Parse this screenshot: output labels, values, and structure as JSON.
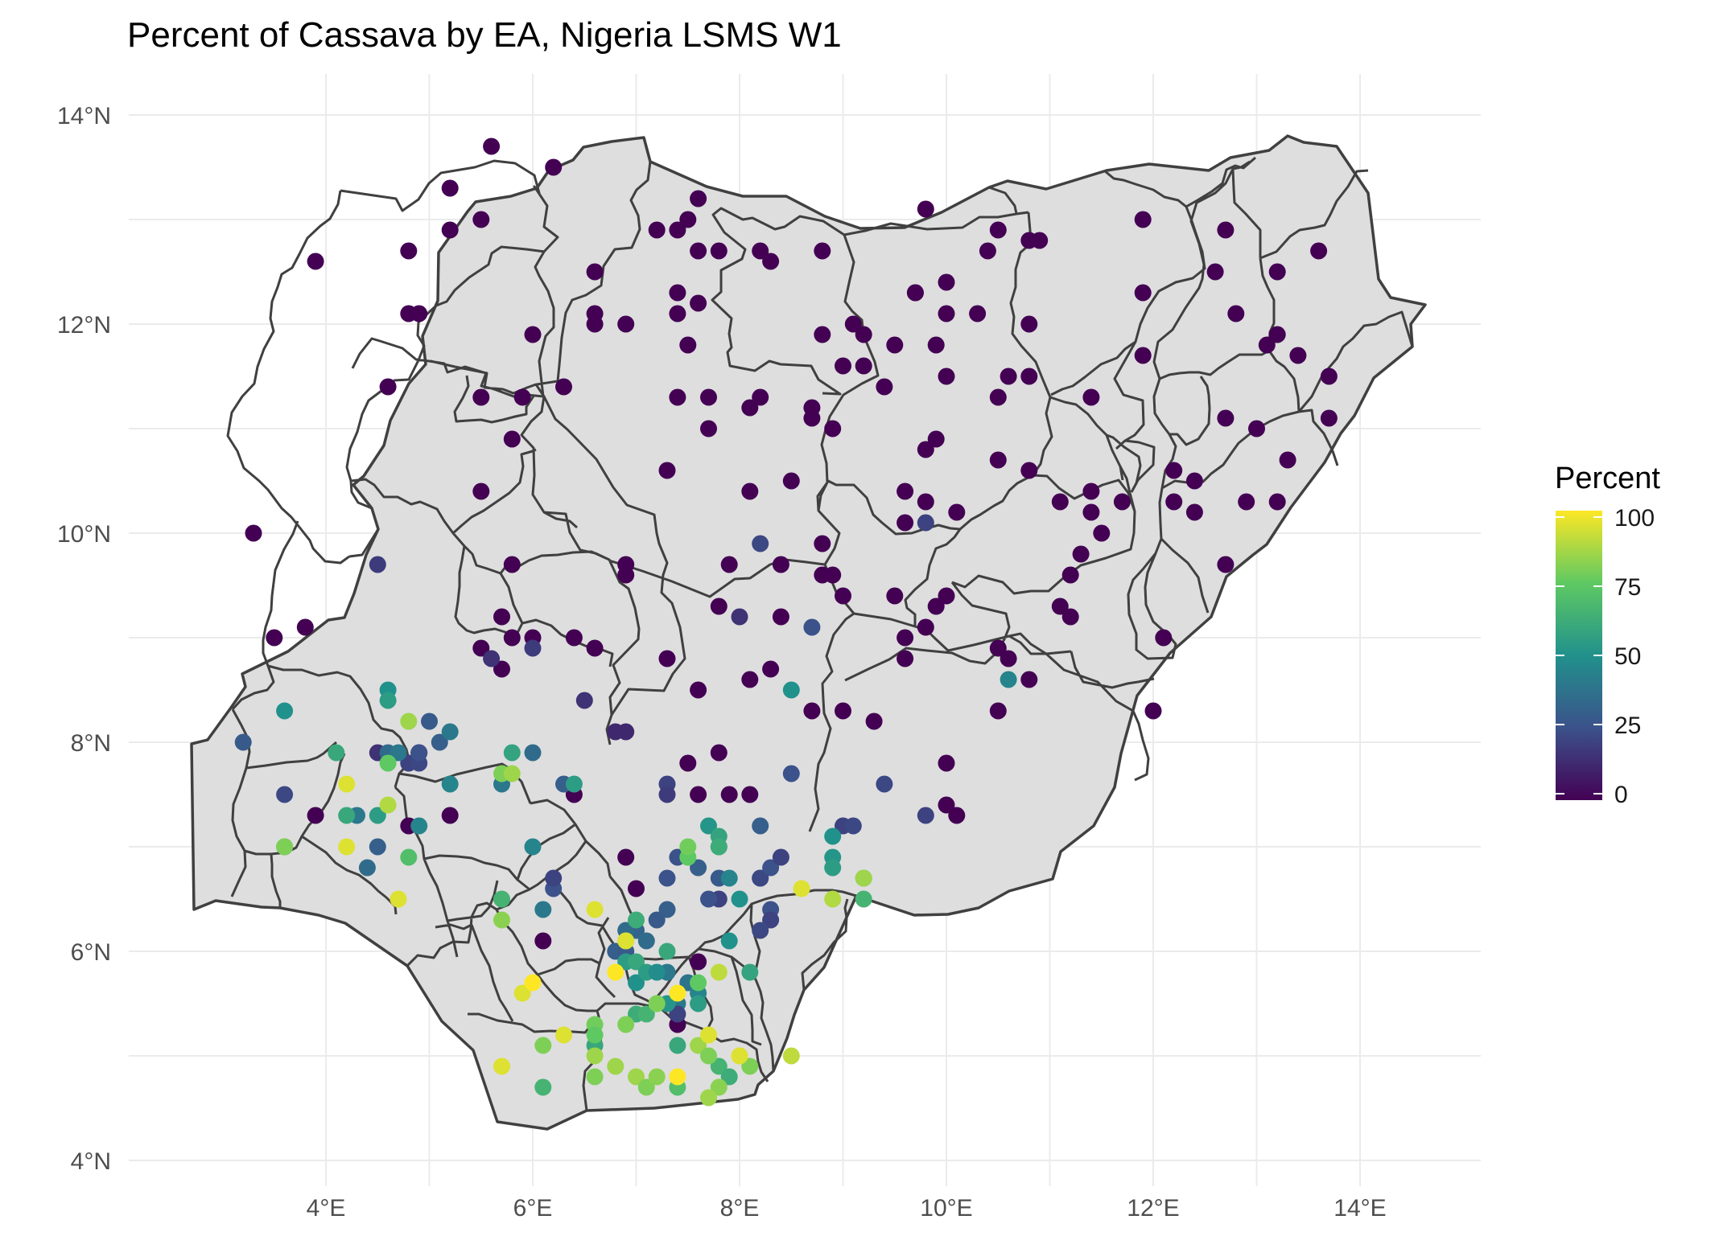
{
  "chart_data": {
    "type": "scatter",
    "title": "Percent of Cassava by EA, Nigeria LSMS W1",
    "xlabel": "",
    "ylabel": "",
    "xlim": [
      2.0,
      15.5
    ],
    "ylim": [
      3.8,
      14.35
    ],
    "x_ticks": [
      4,
      6,
      8,
      10,
      12,
      14
    ],
    "x_tick_labels": [
      "4°E",
      "6°E",
      "8°E",
      "10°E",
      "12°E",
      "14°E"
    ],
    "y_ticks": [
      4,
      6,
      8,
      10,
      12,
      14
    ],
    "y_tick_labels": [
      "4°N",
      "6°N",
      "8°N",
      "10°N",
      "12°N",
      "14°N"
    ],
    "grid": true,
    "legend": {
      "title": "Percent",
      "placement": "right",
      "range": [
        0,
        100
      ],
      "ticks": [
        0,
        25,
        50,
        75,
        100
      ],
      "tick_labels": [
        "0",
        "25",
        "50",
        "75",
        "100"
      ],
      "palette": [
        "#440154",
        "#3b528b",
        "#21918c",
        "#5ec962",
        "#fde725"
      ]
    },
    "columns": [
      "lon",
      "lat",
      "percent"
    ],
    "points": [
      [
        5.6,
        13.7,
        0
      ],
      [
        6.2,
        13.5,
        0
      ],
      [
        5.2,
        13.3,
        0
      ],
      [
        5.5,
        13.0,
        0
      ],
      [
        5.2,
        12.9,
        0
      ],
      [
        4.8,
        12.7,
        0
      ],
      [
        3.9,
        12.6,
        0
      ],
      [
        4.8,
        12.1,
        0
      ],
      [
        4.9,
        12.1,
        0
      ],
      [
        6.0,
        11.9,
        0
      ],
      [
        6.6,
        12.5,
        0
      ],
      [
        6.6,
        12.1,
        0
      ],
      [
        6.6,
        12.0,
        0
      ],
      [
        6.9,
        12.0,
        0
      ],
      [
        5.5,
        11.3,
        0
      ],
      [
        5.9,
        11.3,
        0
      ],
      [
        6.3,
        11.4,
        0
      ],
      [
        4.6,
        11.4,
        0
      ],
      [
        5.8,
        10.9,
        0
      ],
      [
        5.5,
        10.4,
        0
      ],
      [
        7.6,
        13.2,
        0
      ],
      [
        7.5,
        13.0,
        0
      ],
      [
        7.4,
        12.9,
        0
      ],
      [
        7.2,
        12.9,
        0
      ],
      [
        7.6,
        12.7,
        0
      ],
      [
        7.8,
        12.7,
        0
      ],
      [
        8.2,
        12.7,
        0
      ],
      [
        8.3,
        12.6,
        0
      ],
      [
        8.8,
        12.7,
        0
      ],
      [
        7.4,
        12.3,
        0
      ],
      [
        7.6,
        12.2,
        0
      ],
      [
        7.4,
        12.1,
        0
      ],
      [
        7.5,
        11.8,
        0
      ],
      [
        7.4,
        11.3,
        0
      ],
      [
        7.7,
        11.3,
        0
      ],
      [
        7.7,
        11.0,
        0
      ],
      [
        8.1,
        11.2,
        0
      ],
      [
        8.2,
        11.3,
        0
      ],
      [
        8.7,
        11.1,
        0
      ],
      [
        8.8,
        11.9,
        0
      ],
      [
        9.1,
        12.0,
        0
      ],
      [
        9.2,
        11.9,
        0
      ],
      [
        9.0,
        11.6,
        0
      ],
      [
        9.2,
        11.6,
        0
      ],
      [
        9.4,
        11.4,
        0
      ],
      [
        9.5,
        11.8,
        0
      ],
      [
        9.7,
        12.3,
        0
      ],
      [
        9.7,
        12.3,
        0
      ],
      [
        10.0,
        12.4,
        0
      ],
      [
        10.0,
        12.1,
        0
      ],
      [
        10.3,
        12.1,
        0
      ],
      [
        9.9,
        11.8,
        0
      ],
      [
        10.0,
        11.5,
        0
      ],
      [
        9.8,
        13.1,
        0
      ],
      [
        10.4,
        12.7,
        0
      ],
      [
        10.5,
        12.9,
        0
      ],
      [
        10.8,
        12.8,
        0
      ],
      [
        10.9,
        12.8,
        0
      ],
      [
        11.9,
        13.0,
        0
      ],
      [
        12.7,
        12.9,
        0
      ],
      [
        11.9,
        12.3,
        0
      ],
      [
        12.6,
        12.5,
        0
      ],
      [
        13.2,
        12.5,
        0
      ],
      [
        13.6,
        12.7,
        0
      ],
      [
        10.8,
        12.0,
        0
      ],
      [
        11.9,
        11.7,
        0
      ],
      [
        12.8,
        12.1,
        0
      ],
      [
        13.2,
        11.9,
        0
      ],
      [
        13.1,
        11.8,
        0
      ],
      [
        13.4,
        11.7,
        0
      ],
      [
        13.7,
        11.5,
        0
      ],
      [
        11.4,
        11.3,
        0
      ],
      [
        10.5,
        11.3,
        0
      ],
      [
        10.6,
        11.5,
        0
      ],
      [
        10.8,
        11.5,
        0
      ],
      [
        12.7,
        11.1,
        0
      ],
      [
        13.0,
        11.0,
        0
      ],
      [
        13.7,
        11.1,
        0
      ],
      [
        13.3,
        10.7,
        0
      ],
      [
        12.2,
        10.6,
        0
      ],
      [
        12.4,
        10.5,
        0
      ],
      [
        12.2,
        10.3,
        0
      ],
      [
        12.4,
        10.2,
        0
      ],
      [
        12.9,
        10.3,
        0
      ],
      [
        13.2,
        10.3,
        0
      ],
      [
        11.7,
        10.3,
        0
      ],
      [
        11.4,
        10.4,
        0
      ],
      [
        11.1,
        10.3,
        0
      ],
      [
        11.4,
        10.2,
        0
      ],
      [
        11.5,
        10.0,
        0
      ],
      [
        11.2,
        9.6,
        0
      ],
      [
        11.3,
        9.8,
        0
      ],
      [
        12.7,
        9.7,
        0
      ],
      [
        11.1,
        9.3,
        0
      ],
      [
        11.2,
        9.2,
        0
      ],
      [
        12.1,
        9.0,
        0
      ],
      [
        12.0,
        8.3,
        0
      ],
      [
        10.5,
        10.7,
        0
      ],
      [
        10.8,
        10.6,
        0
      ],
      [
        9.8,
        10.8,
        0
      ],
      [
        9.9,
        10.9,
        0
      ],
      [
        9.6,
        10.4,
        0
      ],
      [
        9.6,
        10.1,
        0
      ],
      [
        9.8,
        10.3,
        0
      ],
      [
        10.1,
        10.2,
        0
      ],
      [
        8.7,
        11.2,
        0
      ],
      [
        8.9,
        11.0,
        0
      ],
      [
        8.1,
        10.4,
        0
      ],
      [
        8.5,
        10.5,
        0
      ],
      [
        7.3,
        10.6,
        0
      ],
      [
        8.8,
        9.9,
        0
      ],
      [
        8.4,
        9.7,
        0
      ],
      [
        8.8,
        9.6,
        0
      ],
      [
        8.9,
        9.6,
        0
      ],
      [
        7.9,
        9.7,
        0
      ],
      [
        7.8,
        9.3,
        0
      ],
      [
        9.0,
        9.4,
        0
      ],
      [
        9.5,
        9.4,
        0
      ],
      [
        9.9,
        9.3,
        0
      ],
      [
        10.0,
        9.4,
        0
      ],
      [
        9.8,
        9.1,
        0
      ],
      [
        9.6,
        9.0,
        0
      ],
      [
        9.6,
        8.8,
        0
      ],
      [
        10.5,
        8.9,
        0
      ],
      [
        10.6,
        8.8,
        0
      ],
      [
        10.8,
        8.6,
        0
      ],
      [
        10.5,
        8.3,
        0
      ],
      [
        5.8,
        9.7,
        0
      ],
      [
        6.9,
        9.7,
        0
      ],
      [
        6.9,
        9.6,
        0
      ],
      [
        5.7,
        9.2,
        0
      ],
      [
        5.8,
        9.0,
        0
      ],
      [
        6.0,
        9.0,
        0
      ],
      [
        6.4,
        9.0,
        0
      ],
      [
        6.6,
        8.9,
        0
      ],
      [
        5.5,
        8.9,
        0
      ],
      [
        5.7,
        8.7,
        0
      ],
      [
        7.3,
        8.8,
        0
      ],
      [
        8.4,
        9.2,
        0
      ],
      [
        8.3,
        8.7,
        0
      ],
      [
        8.1,
        8.6,
        0
      ],
      [
        7.6,
        8.5,
        0
      ],
      [
        8.7,
        8.3,
        0
      ],
      [
        9.0,
        8.3,
        0
      ],
      [
        9.3,
        8.2,
        0
      ],
      [
        3.3,
        10.0,
        0
      ],
      [
        3.5,
        9.0,
        0
      ],
      [
        3.8,
        9.1,
        0
      ],
      [
        3.9,
        7.3,
        0
      ],
      [
        4.8,
        7.2,
        0
      ],
      [
        4.9,
        7.9,
        0
      ],
      [
        5.2,
        7.3,
        0
      ],
      [
        7.9,
        7.5,
        0
      ],
      [
        8.1,
        7.5,
        0
      ],
      [
        10.0,
        7.4,
        0
      ],
      [
        10.1,
        7.3,
        0
      ],
      [
        10.0,
        7.8,
        0
      ],
      [
        7.6,
        7.5,
        0
      ],
      [
        7.0,
        6.6,
        0
      ],
      [
        6.9,
        6.9,
        0
      ],
      [
        6.1,
        6.1,
        0
      ],
      [
        7.4,
        5.3,
        0
      ],
      [
        7.6,
        5.9,
        0
      ],
      [
        7.5,
        7.8,
        0
      ],
      [
        7.8,
        7.9,
        0
      ],
      [
        6.4,
        7.5,
        0
      ],
      [
        8.0,
        9.2,
        15
      ],
      [
        6.0,
        8.9,
        18
      ],
      [
        5.6,
        8.8,
        15
      ],
      [
        6.5,
        8.4,
        15
      ],
      [
        6.8,
        8.1,
        12
      ],
      [
        6.9,
        8.1,
        12
      ],
      [
        8.2,
        9.9,
        22
      ],
      [
        9.8,
        10.1,
        20
      ],
      [
        8.7,
        9.1,
        25
      ],
      [
        9.4,
        7.6,
        22
      ],
      [
        9.8,
        7.3,
        20
      ],
      [
        4.5,
        9.7,
        18
      ],
      [
        3.2,
        8.0,
        28
      ],
      [
        3.6,
        7.5,
        22
      ],
      [
        4.5,
        7.9,
        15
      ],
      [
        4.8,
        7.8,
        20
      ],
      [
        4.9,
        7.8,
        22
      ],
      [
        4.9,
        7.9,
        25
      ],
      [
        5.0,
        8.2,
        28
      ],
      [
        5.1,
        8.0,
        30
      ],
      [
        4.6,
        7.9,
        35
      ],
      [
        4.7,
        7.9,
        40
      ],
      [
        7.3,
        7.6,
        20
      ],
      [
        7.3,
        7.5,
        18
      ],
      [
        8.2,
        7.2,
        30
      ],
      [
        8.5,
        7.7,
        25
      ],
      [
        9.0,
        7.2,
        20
      ],
      [
        9.1,
        7.2,
        22
      ],
      [
        7.4,
        6.9,
        25
      ],
      [
        7.6,
        6.8,
        30
      ],
      [
        7.3,
        6.7,
        25
      ],
      [
        7.8,
        6.7,
        28
      ],
      [
        8.2,
        6.7,
        30
      ],
      [
        8.2,
        6.7,
        22
      ],
      [
        8.3,
        6.8,
        25
      ],
      [
        8.4,
        6.9,
        20
      ],
      [
        8.3,
        6.4,
        25
      ],
      [
        8.3,
        6.3,
        20
      ],
      [
        8.2,
        6.2,
        22
      ],
      [
        7.8,
        6.5,
        20
      ],
      [
        7.7,
        6.5,
        25
      ],
      [
        7.3,
        6.4,
        30
      ],
      [
        7.2,
        6.3,
        28
      ],
      [
        7.0,
        6.2,
        32
      ],
      [
        6.9,
        6.2,
        35
      ],
      [
        6.8,
        6.0,
        30
      ],
      [
        6.9,
        6.0,
        28
      ],
      [
        7.1,
        6.1,
        35
      ],
      [
        7.3,
        5.8,
        40
      ],
      [
        7.5,
        5.7,
        38
      ],
      [
        7.4,
        5.5,
        40
      ],
      [
        7.6,
        5.6,
        45
      ],
      [
        7.4,
        5.4,
        20
      ],
      [
        6.2,
        6.6,
        25
      ],
      [
        6.1,
        6.4,
        40
      ],
      [
        6.3,
        7.6,
        30
      ],
      [
        6.2,
        6.7,
        20
      ],
      [
        6.0,
        7.9,
        35
      ],
      [
        6.0,
        7.0,
        45
      ],
      [
        4.4,
        6.8,
        35
      ],
      [
        4.5,
        7.0,
        30
      ],
      [
        4.3,
        7.3,
        40
      ],
      [
        5.2,
        7.6,
        45
      ],
      [
        5.7,
        7.6,
        40
      ],
      [
        4.9,
        7.2,
        45
      ],
      [
        5.2,
        8.1,
        40
      ],
      [
        3.6,
        8.3,
        50
      ],
      [
        3.6,
        7.0,
        55
      ],
      [
        4.6,
        8.5,
        50
      ],
      [
        4.6,
        8.4,
        55
      ],
      [
        4.1,
        7.9,
        60
      ],
      [
        4.5,
        7.3,
        55
      ],
      [
        4.2,
        7.3,
        60
      ],
      [
        5.8,
        7.9,
        58
      ],
      [
        6.4,
        7.6,
        55
      ],
      [
        7.7,
        7.2,
        52
      ],
      [
        7.8,
        7.0,
        48
      ],
      [
        7.9,
        6.7,
        45
      ],
      [
        8.0,
        6.5,
        50
      ],
      [
        7.9,
        6.1,
        50
      ],
      [
        8.5,
        8.5,
        50
      ],
      [
        10.6,
        8.6,
        45
      ],
      [
        8.9,
        7.1,
        50
      ],
      [
        8.9,
        6.9,
        52
      ],
      [
        8.9,
        6.8,
        55
      ],
      [
        9.2,
        6.7,
        60
      ],
      [
        9.2,
        6.5,
        65
      ],
      [
        7.6,
        5.5,
        55
      ],
      [
        8.1,
        5.8,
        58
      ],
      [
        7.4,
        5.1,
        60
      ],
      [
        7.0,
        5.4,
        62
      ],
      [
        7.0,
        5.7,
        50
      ],
      [
        6.9,
        5.9,
        55
      ],
      [
        7.0,
        5.9,
        60
      ],
      [
        7.1,
        5.8,
        55
      ],
      [
        7.2,
        5.8,
        48
      ],
      [
        7.3,
        5.5,
        52
      ],
      [
        7.2,
        5.5,
        70
      ],
      [
        7.1,
        5.4,
        65
      ],
      [
        7.3,
        6.0,
        60
      ],
      [
        6.6,
        5.1,
        60
      ],
      [
        6.1,
        4.7,
        65
      ],
      [
        7.4,
        4.7,
        70
      ],
      [
        7.8,
        4.9,
        65
      ],
      [
        7.9,
        4.8,
        62
      ],
      [
        5.7,
        6.5,
        65
      ],
      [
        7.0,
        6.3,
        62
      ],
      [
        7.8,
        7.1,
        58
      ],
      [
        7.8,
        7.0,
        62
      ],
      [
        4.8,
        6.9,
        70
      ],
      [
        7.5,
        6.9,
        75
      ],
      [
        7.5,
        7.0,
        78
      ],
      [
        5.7,
        7.7,
        80
      ],
      [
        4.6,
        7.8,
        75
      ],
      [
        3.6,
        7.0,
        80
      ],
      [
        7.6,
        5.7,
        75
      ],
      [
        7.2,
        5.5,
        80
      ],
      [
        6.9,
        5.3,
        80
      ],
      [
        6.6,
        5.3,
        78
      ],
      [
        6.9,
        6.1,
        80
      ],
      [
        6.6,
        5.2,
        75
      ],
      [
        6.1,
        5.1,
        80
      ],
      [
        6.6,
        4.8,
        80
      ],
      [
        6.6,
        5.0,
        85
      ],
      [
        6.8,
        4.9,
        85
      ],
      [
        7.0,
        4.8,
        85
      ],
      [
        7.1,
        4.7,
        80
      ],
      [
        7.2,
        4.8,
        82
      ],
      [
        7.6,
        5.1,
        85
      ],
      [
        7.7,
        5.0,
        80
      ],
      [
        7.8,
        4.7,
        82
      ],
      [
        7.7,
        4.6,
        85
      ],
      [
        8.1,
        4.9,
        80
      ],
      [
        5.7,
        6.3,
        82
      ],
      [
        4.8,
        8.2,
        85
      ],
      [
        4.6,
        7.4,
        88
      ],
      [
        5.8,
        7.7,
        85
      ],
      [
        9.2,
        6.7,
        85
      ],
      [
        8.9,
        6.5,
        88
      ],
      [
        7.8,
        5.8,
        90
      ],
      [
        4.2,
        7.6,
        95
      ],
      [
        4.2,
        7.0,
        95
      ],
      [
        4.7,
        6.5,
        95
      ],
      [
        5.9,
        5.6,
        95
      ],
      [
        6.0,
        5.7,
        100
      ],
      [
        6.3,
        5.2,
        95
      ],
      [
        5.7,
        4.9,
        95
      ],
      [
        6.6,
        6.4,
        95
      ],
      [
        6.8,
        5.8,
        100
      ],
      [
        6.9,
        6.1,
        95
      ],
      [
        7.4,
        5.6,
        100
      ],
      [
        7.4,
        4.8,
        100
      ],
      [
        7.7,
        5.2,
        95
      ],
      [
        8.0,
        5.0,
        100
      ],
      [
        8.5,
        5.0,
        90
      ],
      [
        8.6,
        6.6,
        95
      ],
      [
        8.0,
        5.0,
        95
      ]
    ]
  }
}
